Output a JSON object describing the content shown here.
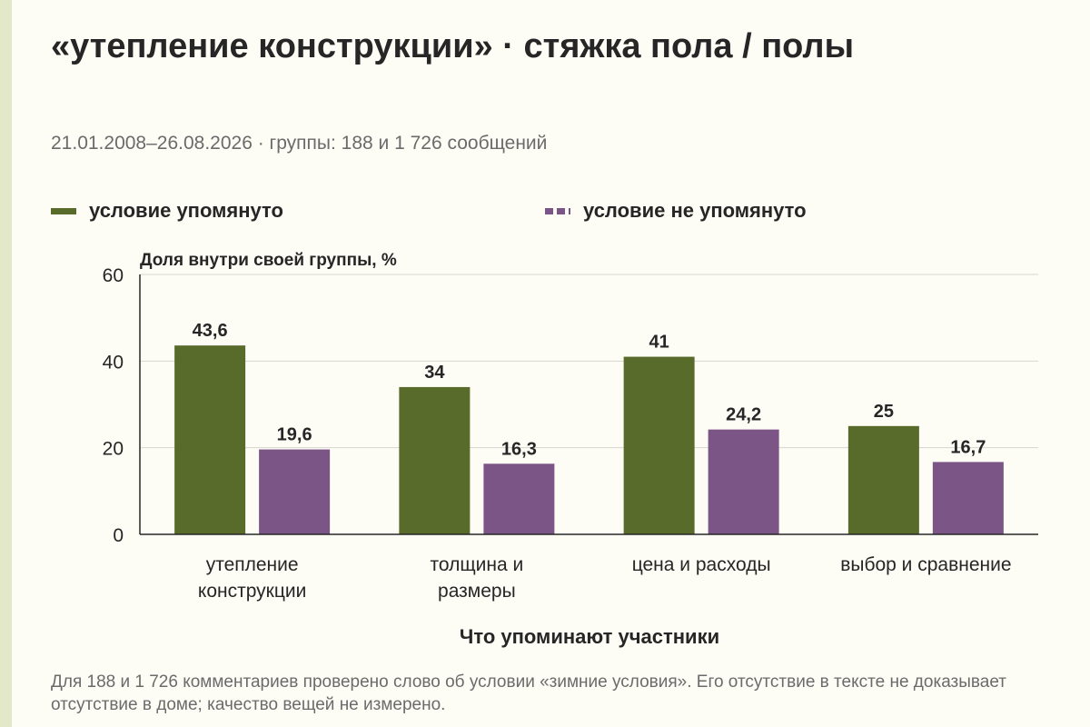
{
  "title": "«утепление конструкции» · стяжка пола / полы",
  "subtitle": "21.01.2008–26.08.2026 · группы: 188 и 1 726 сообщений",
  "legend": [
    {
      "label": "условие упомянуто",
      "color": "#596b2a",
      "style": "solid"
    },
    {
      "label": "условие не упомянуто",
      "color": "#7a5585",
      "style": "dashed"
    }
  ],
  "note": "Для 188 и 1 726 комментариев проверено слово об условии «зимние условия». Его отсутствие в тексте не доказывает отсутствие в доме; качество вещей не измерено.",
  "chart_data": {
    "type": "bar",
    "ylabel": "Доля внутри своей группы, %",
    "xlabel": "Что упоминают участники",
    "ylim": [
      0,
      60
    ],
    "yticks": [
      0,
      20,
      40,
      60
    ],
    "grid": true,
    "legend_position": "top",
    "categories": [
      [
        "утепление",
        "конструкции"
      ],
      [
        "толщина и",
        "размеры"
      ],
      [
        "цена и расходы"
      ],
      [
        "выбор и сравнение"
      ]
    ],
    "series": [
      {
        "name": "условие упомянуто",
        "color": "#596b2a",
        "values": [
          43.6,
          34,
          41,
          25
        ],
        "labels": [
          "43,6",
          "34",
          "41",
          "25"
        ]
      },
      {
        "name": "условие не упомянуто",
        "color": "#7a5585",
        "values": [
          19.6,
          16.3,
          24.2,
          16.7
        ],
        "labels": [
          "19,6",
          "16,3",
          "24,2",
          "16,7"
        ]
      }
    ]
  }
}
